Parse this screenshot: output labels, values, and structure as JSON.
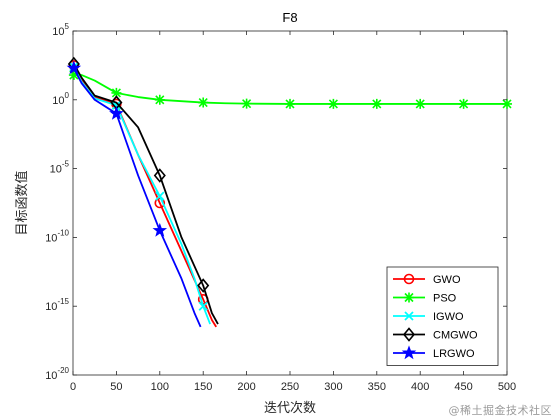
{
  "watermark": "@稀土掘金技术社区",
  "chart_data": {
    "type": "line",
    "title": "F8",
    "xlabel": "迭代次数",
    "ylabel": "目标函数值",
    "xlim": [
      0,
      500
    ],
    "ylim_exponent": [
      -20,
      5
    ],
    "y_scale": "log",
    "x_ticks": [
      "0",
      "50",
      "100",
      "150",
      "200",
      "250",
      "300",
      "350",
      "400",
      "450",
      "500"
    ],
    "y_ticks": [
      {
        "base": "10",
        "exp": "5"
      },
      {
        "base": "10",
        "exp": "0"
      },
      {
        "base": "10",
        "exp": "-5"
      },
      {
        "base": "10",
        "exp": "-10"
      },
      {
        "base": "10",
        "exp": "-15"
      },
      {
        "base": "10",
        "exp": "-20"
      }
    ],
    "legend_position": "bottom-right",
    "grid": false,
    "series": [
      {
        "name": "GWO",
        "color": "#ff0000",
        "marker": "circle",
        "x": [
          1,
          10,
          25,
          50,
          75,
          100,
          125,
          150,
          160,
          165
        ],
        "y_log10": [
          2.5,
          1.5,
          0.2,
          -0.3,
          -4,
          -7.5,
          -11,
          -14.5,
          -16,
          -16.5
        ]
      },
      {
        "name": "PSO",
        "color": "#00ff00",
        "marker": "asterisk",
        "x": [
          1,
          10,
          25,
          50,
          75,
          100,
          125,
          150,
          175,
          200,
          250,
          300,
          350,
          400,
          450,
          500
        ],
        "y_log10": [
          1.8,
          1.8,
          1.4,
          0.5,
          0.2,
          0.0,
          -0.1,
          -0.2,
          -0.25,
          -0.28,
          -0.3,
          -0.3,
          -0.3,
          -0.3,
          -0.3,
          -0.3
        ]
      },
      {
        "name": "IGWO",
        "color": "#00ffff",
        "marker": "x",
        "x": [
          1,
          10,
          25,
          50,
          75,
          100,
          125,
          140,
          150,
          158
        ],
        "y_log10": [
          2.4,
          1.3,
          0.1,
          -0.4,
          -4,
          -7,
          -10.5,
          -13,
          -15,
          -16.3
        ]
      },
      {
        "name": "CMGWO",
        "color": "#000000",
        "marker": "diamond",
        "x": [
          1,
          10,
          25,
          50,
          75,
          100,
          125,
          150,
          160,
          167
        ],
        "y_log10": [
          2.6,
          1.6,
          0.3,
          -0.2,
          -2,
          -5.5,
          -10,
          -13.5,
          -15.5,
          -16.3
        ]
      },
      {
        "name": "LRGWO",
        "color": "#0000ff",
        "marker": "star",
        "x": [
          1,
          10,
          25,
          50,
          75,
          100,
          125,
          140,
          147
        ],
        "y_log10": [
          2.3,
          1.2,
          0.0,
          -1,
          -5.5,
          -9.5,
          -13,
          -15.5,
          -16.5
        ]
      }
    ]
  }
}
